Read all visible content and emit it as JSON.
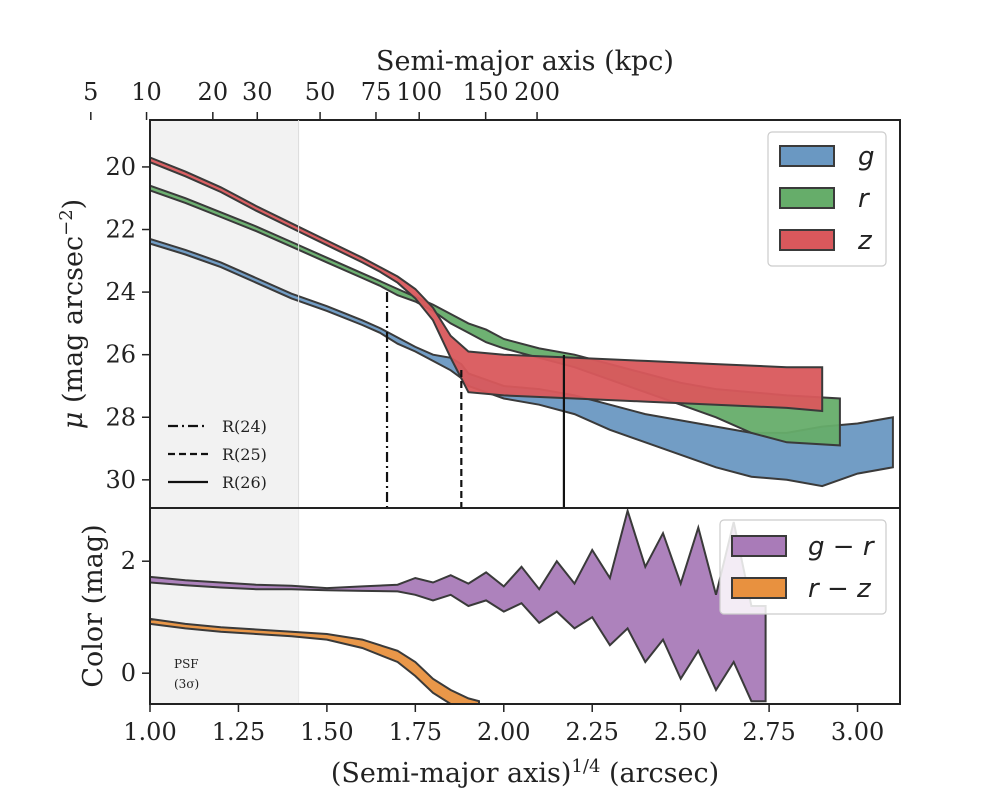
{
  "chart_data": [
    {
      "type": "area",
      "panel": "surface-brightness",
      "top_axis": {
        "label": "Semi-major axis (kpc)",
        "tick_values": [
          5,
          10,
          20,
          30,
          50,
          75,
          100,
          150,
          200
        ],
        "tick_labels": [
          "5",
          "10",
          "20",
          "30",
          "50",
          "75",
          "100",
          "150",
          "200"
        ]
      },
      "ylabel_main": "μ",
      "ylabel_rest": " (mag arcsec",
      "ylabel_sup": "−2",
      "ylabel_close": ")",
      "ylim": [
        30.9,
        18.5
      ],
      "y_inverted": true,
      "yticks": [
        20,
        22,
        24,
        26,
        28,
        30
      ],
      "xlim": [
        1.0,
        3.12
      ],
      "psf_shade_x": [
        1.0,
        1.42
      ],
      "legend": {
        "position": "top-right",
        "entries": [
          "g",
          "r",
          "z"
        ]
      },
      "colors": {
        "g": "#6a98c2",
        "r": "#66ad6a",
        "z": "#d9585c"
      },
      "series": [
        {
          "name": "g",
          "x": [
            1.0,
            1.1,
            1.2,
            1.3,
            1.4,
            1.5,
            1.6,
            1.65,
            1.7,
            1.75,
            1.8,
            1.85,
            1.88,
            1.9,
            1.95,
            2.0,
            2.1,
            2.2,
            2.3,
            2.4,
            2.5,
            2.6,
            2.7,
            2.8,
            2.9,
            3.0,
            3.1
          ],
          "y_lo": [
            22.45,
            22.8,
            23.2,
            23.7,
            24.2,
            24.6,
            25.05,
            25.3,
            25.65,
            25.9,
            26.2,
            26.5,
            26.75,
            27.0,
            27.2,
            27.4,
            27.6,
            27.9,
            28.4,
            28.8,
            29.2,
            29.6,
            29.9,
            30.0,
            30.2,
            29.8,
            29.6
          ],
          "y_hi": [
            22.3,
            22.65,
            23.05,
            23.55,
            24.05,
            24.45,
            24.9,
            25.15,
            25.45,
            25.75,
            26.0,
            26.1,
            26.3,
            26.6,
            26.8,
            27.0,
            27.1,
            27.3,
            27.6,
            27.9,
            28.1,
            28.3,
            28.5,
            28.5,
            28.3,
            28.2,
            28.0
          ]
        },
        {
          "name": "r",
          "x": [
            1.0,
            1.1,
            1.2,
            1.3,
            1.4,
            1.5,
            1.6,
            1.65,
            1.7,
            1.75,
            1.8,
            1.85,
            1.9,
            1.95,
            2.0,
            2.1,
            2.2,
            2.3,
            2.4,
            2.5,
            2.6,
            2.7,
            2.8,
            2.95
          ],
          "y_lo": [
            20.75,
            21.15,
            21.6,
            22.05,
            22.55,
            23.05,
            23.55,
            23.8,
            24.1,
            24.3,
            24.6,
            25.0,
            25.3,
            25.6,
            25.8,
            26.1,
            26.4,
            26.8,
            27.2,
            27.6,
            28.0,
            28.5,
            28.8,
            28.9
          ],
          "y_hi": [
            20.6,
            21.0,
            21.45,
            21.9,
            22.4,
            22.9,
            23.4,
            23.65,
            23.9,
            24.15,
            24.4,
            24.7,
            25.0,
            25.2,
            25.5,
            25.8,
            26.0,
            26.3,
            26.6,
            26.9,
            27.1,
            27.2,
            27.3,
            27.4
          ]
        },
        {
          "name": "z",
          "x": [
            1.0,
            1.1,
            1.2,
            1.3,
            1.4,
            1.5,
            1.6,
            1.65,
            1.7,
            1.75,
            1.8,
            1.85,
            1.9,
            2.0,
            2.2,
            2.4,
            2.6,
            2.8,
            2.9
          ],
          "y_lo": [
            19.85,
            20.3,
            20.8,
            21.4,
            21.95,
            22.5,
            23.05,
            23.35,
            23.7,
            24.2,
            24.9,
            26.1,
            27.2,
            27.3,
            27.4,
            27.5,
            27.6,
            27.7,
            27.8
          ],
          "y_hi": [
            19.7,
            20.15,
            20.65,
            21.25,
            21.8,
            22.35,
            22.9,
            23.2,
            23.5,
            23.9,
            24.5,
            25.4,
            25.9,
            26.0,
            26.1,
            26.2,
            26.3,
            26.4,
            26.4
          ]
        }
      ],
      "reference_lines": [
        {
          "label": "R(24)",
          "x": 1.67,
          "style": "dashdot"
        },
        {
          "label": "R(25)",
          "x": 1.88,
          "style": "dashed"
        },
        {
          "label": "R(26)",
          "x": 2.17,
          "style": "solid"
        }
      ]
    },
    {
      "type": "area",
      "panel": "color",
      "xlabel_main": "(Semi-major axis)",
      "xlabel_sup": "1/4",
      "xlabel_rest": " (arcsec)",
      "ylabel": "Color (mag)",
      "ylim": [
        -0.55,
        2.95
      ],
      "yticks": [
        0,
        2
      ],
      "xlim": [
        1.0,
        3.12
      ],
      "xticks": [
        1.0,
        1.25,
        1.5,
        1.75,
        2.0,
        2.25,
        2.5,
        2.75,
        3.0
      ],
      "xtick_labels": [
        "1.00",
        "1.25",
        "1.50",
        "1.75",
        "2.00",
        "2.25",
        "2.50",
        "2.75",
        "3.00"
      ],
      "psf_label": [
        "PSF",
        "(3σ)"
      ],
      "legend": {
        "position": "top-right",
        "entries": [
          "g − r",
          "r − z"
        ]
      },
      "colors": {
        "g_r": "#a97bb8",
        "r_z": "#e8913f"
      },
      "series": [
        {
          "name": "g − r",
          "x": [
            1.0,
            1.1,
            1.2,
            1.3,
            1.4,
            1.5,
            1.6,
            1.7,
            1.75,
            1.8,
            1.85,
            1.9,
            1.95,
            2.0,
            2.05,
            2.1,
            2.15,
            2.2,
            2.25,
            2.3,
            2.35,
            2.4,
            2.45,
            2.5,
            2.55,
            2.6,
            2.65,
            2.7,
            2.74
          ],
          "y_lo": [
            1.62,
            1.57,
            1.53,
            1.5,
            1.5,
            1.48,
            1.47,
            1.46,
            1.4,
            1.3,
            1.4,
            1.2,
            1.3,
            1.1,
            1.25,
            0.9,
            1.1,
            0.8,
            1.0,
            0.5,
            0.8,
            0.2,
            0.6,
            -0.1,
            0.4,
            -0.3,
            0.2,
            -0.5,
            -0.5
          ],
          "y_hi": [
            1.72,
            1.66,
            1.62,
            1.58,
            1.56,
            1.52,
            1.55,
            1.58,
            1.7,
            1.62,
            1.75,
            1.6,
            1.8,
            1.55,
            1.9,
            1.5,
            2.0,
            1.6,
            2.2,
            1.7,
            2.9,
            1.9,
            2.5,
            1.6,
            2.6,
            1.4,
            2.7,
            1.2,
            1.2
          ]
        },
        {
          "name": "r − z",
          "x": [
            1.0,
            1.1,
            1.2,
            1.3,
            1.4,
            1.5,
            1.6,
            1.7,
            1.75,
            1.8,
            1.85,
            1.9,
            1.93
          ],
          "y_lo": [
            0.88,
            0.8,
            0.74,
            0.7,
            0.66,
            0.6,
            0.45,
            0.2,
            -0.05,
            -0.35,
            -0.55,
            -0.55,
            -0.55
          ],
          "y_hi": [
            0.97,
            0.88,
            0.82,
            0.78,
            0.74,
            0.7,
            0.6,
            0.4,
            0.2,
            -0.1,
            -0.3,
            -0.45,
            -0.5
          ]
        }
      ]
    }
  ]
}
